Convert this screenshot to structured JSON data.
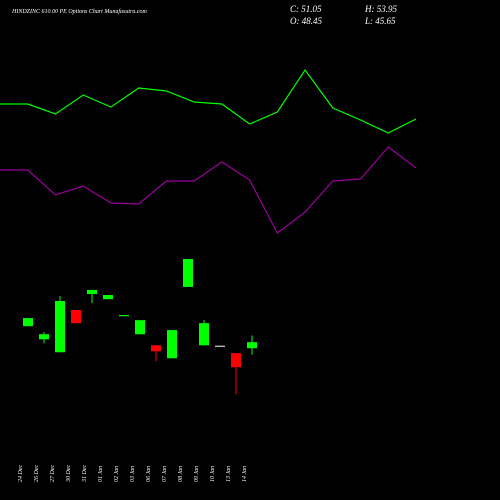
{
  "chart_data": [
    {
      "type": "line",
      "title": "HINDZINC 610.00 PE Options Chart Munafasutra.com",
      "ylim": [
        0,
        100
      ],
      "series": [
        {
          "color": "#00ff00",
          "values": [
            73,
            73,
            68,
            77.5,
            71.5,
            81,
            79.5,
            74,
            73,
            63,
            69,
            90,
            71,
            65,
            58.5,
            65.5
          ]
        },
        {
          "color": "#990099",
          "values": [
            40,
            40,
            27.5,
            32,
            23.5,
            23,
            34.5,
            34.5,
            44,
            35,
            8.5,
            19,
            34.5,
            35.5,
            51.5,
            41
          ]
        }
      ]
    },
    {
      "type": "candlestick",
      "stats": [
        "C: 51.05",
        "H: 53.95",
        "O: 48.45",
        "L: 45.65"
      ],
      "up_color": "#00ff00",
      "down_color": "#ff0000",
      "ylim": [
        26,
        91
      ],
      "categories": [
        "24 Dec",
        "26 Dec",
        "27 Dec",
        "30 Dec",
        "31 Dec",
        "01 Jan",
        "02 Jan",
        "03 Jan",
        "06 Jan",
        "07 Jan",
        "08 Jan",
        "09 Jan",
        "10 Jan",
        "13 Jan",
        "14 Jan"
      ],
      "open": [
        58,
        52.3,
        46.7,
        65,
        71.9,
        69.7,
        62.3,
        54.5,
        49.7,
        44.1,
        75,
        49.7,
        49.3,
        46.3,
        48.45
      ],
      "high": [
        61.5,
        55.4,
        71,
        65,
        73.7,
        71.5,
        62.8,
        60.6,
        49.7,
        56.3,
        87.1,
        60.6,
        49.3,
        46.3,
        53.95
      ],
      "low": [
        58,
        50.6,
        46.7,
        59.3,
        68,
        69.7,
        62.3,
        54.5,
        42.8,
        44.1,
        75,
        49.7,
        49.3,
        28.4,
        45.65
      ],
      "close": [
        61.5,
        54.5,
        68.9,
        59.3,
        73.7,
        71.5,
        62.8,
        60.6,
        47.1,
        56.3,
        87.1,
        59.3,
        49.3,
        40.2,
        51.05
      ]
    }
  ]
}
